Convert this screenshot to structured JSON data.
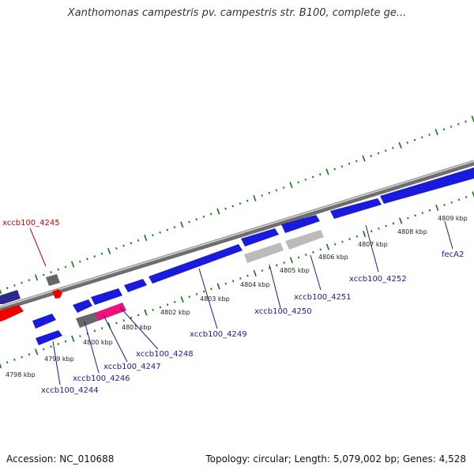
{
  "title": "Xanthomonas campestris pv. campestris str. B100, complete ge...",
  "footer": {
    "accession": "Accession: NC_010688",
    "topology": "Topology: circular; Length: 5,079,002 bp; Genes: 4,528"
  },
  "colors": {
    "forward_gene": "#1a1adc",
    "reverse_gene": "#1a1adc",
    "highlight_gene": "#ee0000",
    "hypothetical_gene": "#666666",
    "pseudo_gene": "#bbbbbb",
    "magenta_gene": "#ee1177",
    "label_blue": "#1a1a99",
    "label_red": "#cc0000",
    "tick_green": "#117711",
    "backbone": "#888888"
  },
  "tick_labels": [
    "4798 kbp",
    "4799 kbp",
    "4800 kbp",
    "4801 kbp",
    "4802 kbp",
    "4803 kbp",
    "4804 kbp",
    "4805 kbp",
    "4806 kbp",
    "4807 kbp",
    "4808 kbp",
    "4809 kbp"
  ],
  "gene_labels": [
    {
      "name": "xccb100_4245",
      "color": "red"
    },
    {
      "name": "xccb100_4244",
      "color": "blue"
    },
    {
      "name": "xccb100_4246",
      "color": "blue"
    },
    {
      "name": "xccb100_4247",
      "color": "blue"
    },
    {
      "name": "xccb100_4248",
      "color": "blue"
    },
    {
      "name": "xccb100_4249",
      "color": "blue"
    },
    {
      "name": "xccb100_4250",
      "color": "blue"
    },
    {
      "name": "xccb100_4251",
      "color": "blue"
    },
    {
      "name": "xccb100_4252",
      "color": "blue"
    },
    {
      "name": "fecA2",
      "color": "blue"
    }
  ]
}
